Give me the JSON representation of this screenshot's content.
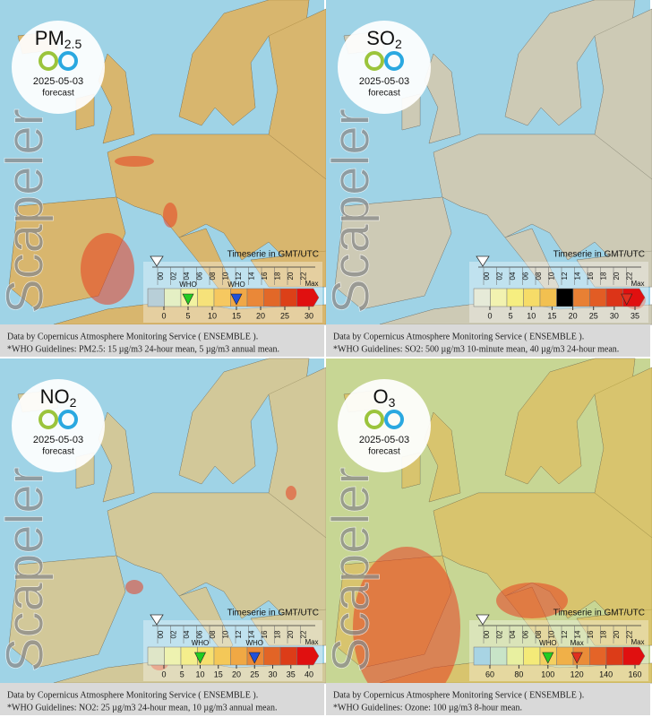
{
  "panels": [
    {
      "pollutant": "PM",
      "subscript": "2.5",
      "date": "2025-05-03",
      "forecast": "forecast",
      "watermark": "Scapeler",
      "timeserie": "Timeserie in GMT/UTC",
      "hours": [
        "00",
        "02",
        "04",
        "06",
        "08",
        "10",
        "12",
        "14",
        "16",
        "18",
        "20",
        "22"
      ],
      "legend": {
        "ticks": [
          0,
          5,
          10,
          15,
          20,
          25,
          30
        ],
        "max": "Max",
        "colors": [
          "#b8cfd8",
          "#e4efc4",
          "#f2f2a0",
          "#f6e27a",
          "#f6c860",
          "#f0a848",
          "#ea8838",
          "#e26828",
          "#dc4018",
          "#e01010"
        ],
        "markers": [
          {
            "value": 5,
            "color": "#22cc22",
            "label": "WHO"
          },
          {
            "value": 15,
            "color": "#2250d8",
            "label": "WHO"
          }
        ]
      },
      "footer": [
        "Data by Copernicus Atmosphere Monitoring Service ( ENSEMBLE ).",
        "*WHO Guidelines: PM2.5: 15 µg/m3 24-hour mean, 5 µg/m3 annual mean."
      ]
    },
    {
      "pollutant": "SO",
      "subscript": "2",
      "date": "2025-05-03",
      "forecast": "forecast",
      "watermark": "Scapeler",
      "timeserie": "Timeserie in GMT/UTC",
      "hours": [
        "00",
        "02",
        "04",
        "06",
        "08",
        "10",
        "12",
        "14",
        "16",
        "18",
        "20",
        "22"
      ],
      "legend": {
        "ticks": [
          0,
          5,
          10,
          15,
          20,
          25,
          30,
          35
        ],
        "max": "Max",
        "colors": [
          "#e6ead8",
          "#f2f2b0",
          "#f6ee80",
          "#f6dc68",
          "#f2c050",
          "#ee a040",
          "#e88034",
          "#e25c24",
          "#dc3418",
          "#e01010"
        ],
        "markers": [
          {
            "value": 33,
            "color": "#e03020"
          }
        ]
      },
      "footer": [
        "Data by Copernicus Atmosphere Monitoring Service ( ENSEMBLE ).",
        "*WHO Guidelines: SO2: 500 µg/m3 10-minute mean, 40 µg/m3 24-hour mean."
      ]
    },
    {
      "pollutant": "NO",
      "subscript": "2",
      "date": "2025-05-03",
      "forecast": "forecast",
      "watermark": "Scapeler",
      "timeserie": "Timeserie in GMT/UTC",
      "hours": [
        "00",
        "02",
        "04",
        "06",
        "08",
        "10",
        "12",
        "14",
        "16",
        "18",
        "20",
        "22"
      ],
      "legend": {
        "ticks": [
          0,
          5,
          10,
          15,
          20,
          25,
          30,
          35,
          40
        ],
        "max": "Max",
        "colors": [
          "#dfe6c8",
          "#eef2b0",
          "#f4ee8c",
          "#f6e070",
          "#f4c858",
          "#f0a844",
          "#ea8836",
          "#e26426",
          "#dc3c18",
          "#e01010"
        ],
        "markers": [
          {
            "value": 10,
            "color": "#22cc22",
            "label": "WHO"
          },
          {
            "value": 25,
            "color": "#2250d8",
            "label": "WHO"
          }
        ]
      },
      "footer": [
        "Data by Copernicus Atmosphere Monitoring Service ( ENSEMBLE ).",
        "*WHO Guidelines: NO2: 25 µg/m3 24-hour mean, 10 µg/m3 annual mean."
      ]
    },
    {
      "pollutant": "O",
      "subscript": "3",
      "date": "2025-05-03",
      "forecast": "forecast",
      "watermark": "Scapeler",
      "timeserie": "Timeserie in GMT/UTC",
      "hours": [
        "00",
        "02",
        "04",
        "06",
        "08",
        "10",
        "12",
        "14",
        "16",
        "18",
        "20",
        "22"
      ],
      "legend": {
        "ticks": [
          60,
          80,
          100,
          120,
          140,
          160
        ],
        "max": "Max",
        "colors": [
          "#a8d4e4",
          "#c8e4c8",
          "#e8f0a0",
          "#f4ea78",
          "#f4d060",
          "#f0b048",
          "#ea8c38",
          "#e46428",
          "#dc3c18",
          "#e01010"
        ],
        "markers": [
          {
            "value": 100,
            "color": "#22cc22",
            "label": "WHO"
          },
          {
            "value": 120,
            "color": "#e03020",
            "label": "Max"
          }
        ]
      },
      "footer": [
        "Data by Copernicus Atmosphere Monitoring Service ( ENSEMBLE ).",
        "*WHO Guidelines: Ozone: 100 µg/m3 8-hour mean."
      ]
    }
  ]
}
